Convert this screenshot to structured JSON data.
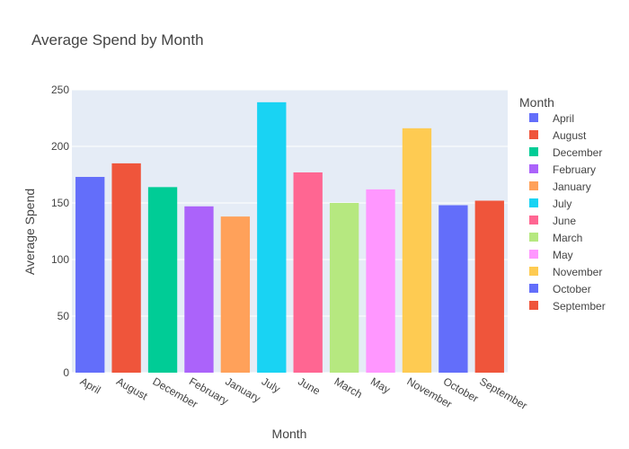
{
  "chart_data": {
    "type": "bar",
    "title": "Average Spend by Month",
    "xlabel": "Month",
    "ylabel": "Average Spend",
    "ylim": [
      0,
      250
    ],
    "yticks": [
      0,
      50,
      100,
      150,
      200,
      250
    ],
    "grid": true,
    "legend": {
      "title": "Month",
      "position": "right"
    },
    "categories": [
      "April",
      "August",
      "December",
      "February",
      "January",
      "July",
      "June",
      "March",
      "May",
      "November",
      "October",
      "September"
    ],
    "values": [
      173,
      185,
      164,
      147,
      138,
      239,
      177,
      150,
      162,
      216,
      148,
      152
    ],
    "colors": [
      "#636efa",
      "#EF553B",
      "#00cc96",
      "#ab63fa",
      "#FFA15A",
      "#19d3f3",
      "#FF6692",
      "#B6E880",
      "#FF97FF",
      "#FECB52",
      "#636efa",
      "#EF553B"
    ],
    "plot_background": "#E5ECF6",
    "gridline_color": "#ffffff"
  }
}
